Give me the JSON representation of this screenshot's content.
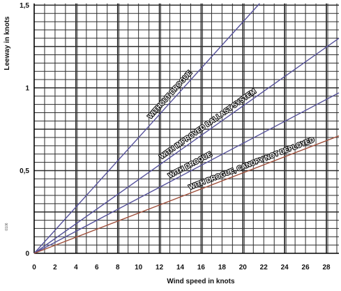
{
  "chart_data": {
    "type": "line",
    "title": "",
    "xlabel": "Wind speed in knots",
    "ylabel": "Leeway in knots",
    "xlim": [
      0,
      29.2
    ],
    "ylim": [
      0,
      1.51
    ],
    "x_ticks": [
      "0",
      "2",
      "4",
      "6",
      "8",
      "10",
      "12",
      "14",
      "16",
      "18",
      "20",
      "22",
      "24",
      "26",
      "28"
    ],
    "y_ticks": [
      "0",
      "0,5",
      "1",
      "1,5"
    ],
    "grid": true,
    "margin_code": "0106",
    "series": [
      {
        "name": "WITHOUT DROGUE",
        "color": "#55519a",
        "x": [
          0,
          21.6
        ],
        "y": [
          0,
          1.51
        ]
      },
      {
        "name": "WITH IMPROVED BALLAST SYSTEM",
        "color": "#55519a",
        "x": [
          0,
          29.2
        ],
        "y": [
          0,
          1.3
        ]
      },
      {
        "name": "WITH DROGUE",
        "color": "#55519a",
        "x": [
          0,
          29.2
        ],
        "y": [
          0,
          0.97
        ]
      },
      {
        "name": "WITH DROGUE, CANOPY NOT DEPLOYED",
        "color": "#a0503c",
        "x": [
          0,
          29.2
        ],
        "y": [
          0,
          0.71
        ]
      }
    ]
  }
}
